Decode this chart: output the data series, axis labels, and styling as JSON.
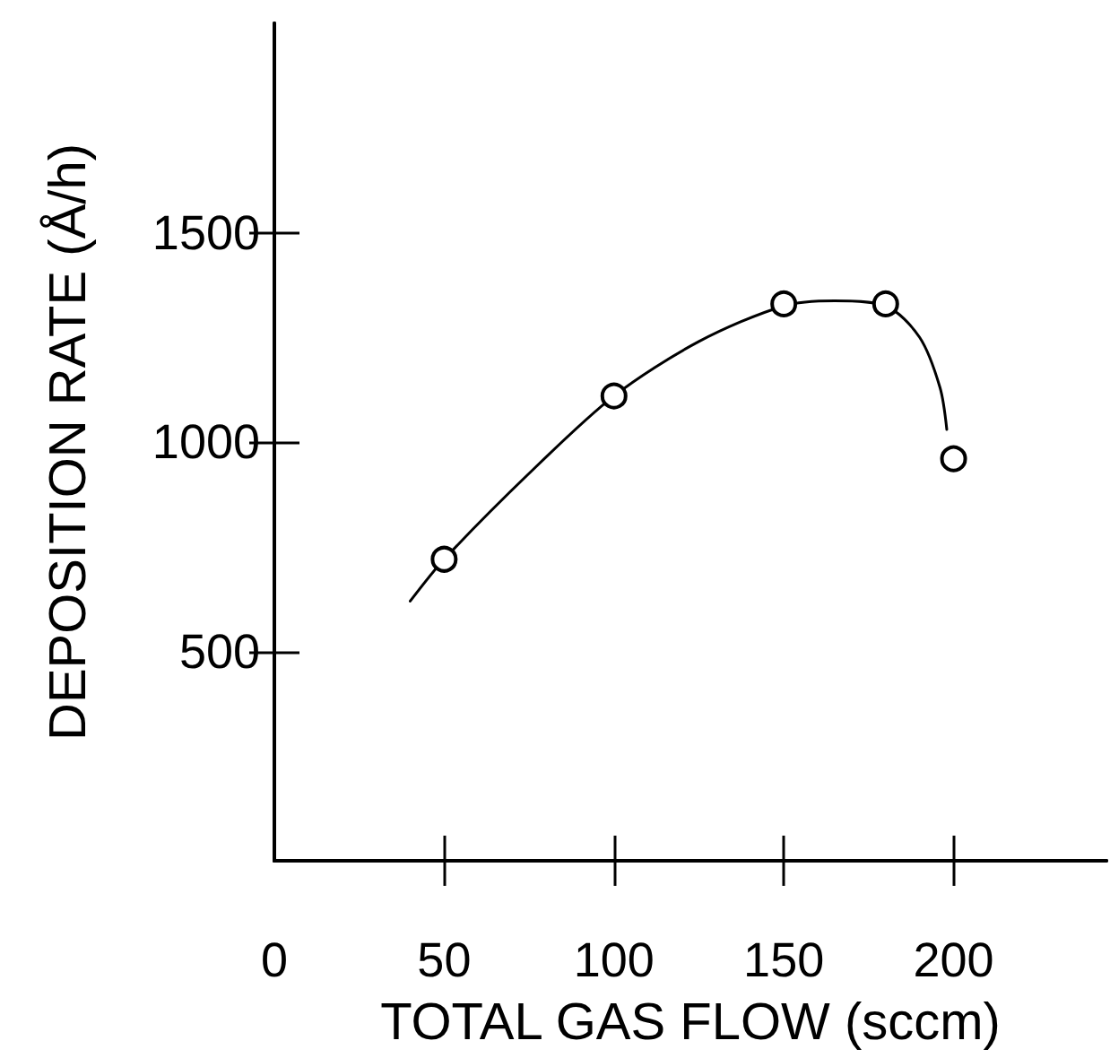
{
  "chart_data": {
    "type": "scatter",
    "xlabel": "TOTAL GAS FLOW (sccm)",
    "ylabel": "DEPOSITION RATE (Å/h)",
    "xlim": [
      0,
      245
    ],
    "xticks": [
      0,
      50,
      100,
      150,
      200
    ],
    "ylim": [
      0,
      2000
    ],
    "yticks": [
      500,
      1000,
      1500
    ],
    "grid": false,
    "marker": "circle",
    "series": [
      {
        "type": "line",
        "color": "#000000",
        "marker": "none",
        "line_style": "solid",
        "x": [
          40,
          50,
          75,
          100,
          125,
          150,
          165,
          180,
          190,
          196,
          198
        ],
        "values": [
          620,
          720,
          925,
          1110,
          1240,
          1325,
          1337,
          1325,
          1250,
          1130,
          1030
        ]
      },
      {
        "color": "#000000",
        "x": [
          50,
          100,
          150,
          180,
          200
        ],
        "values": [
          720,
          1110,
          1330,
          1330,
          960
        ]
      }
    ]
  }
}
